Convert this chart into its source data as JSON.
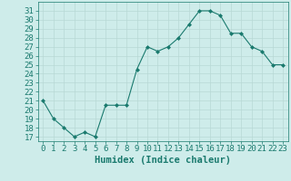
{
  "x": [
    0,
    1,
    2,
    3,
    4,
    5,
    6,
    7,
    8,
    9,
    10,
    11,
    12,
    13,
    14,
    15,
    16,
    17,
    18,
    19,
    20,
    21,
    22,
    23
  ],
  "y": [
    21.0,
    19.0,
    18.0,
    17.0,
    17.5,
    17.0,
    20.5,
    20.5,
    20.5,
    24.5,
    27.0,
    26.5,
    27.0,
    28.0,
    29.5,
    31.0,
    31.0,
    30.5,
    28.5,
    28.5,
    27.0,
    26.5,
    25.0,
    25.0
  ],
  "line_color": "#1a7a6e",
  "marker": "D",
  "marker_size": 2.0,
  "bg_color": "#ceecea",
  "grid_color": "#b8d8d5",
  "xlabel": "Humidex (Indice chaleur)",
  "ylim": [
    16.5,
    32
  ],
  "yticks": [
    17,
    18,
    19,
    20,
    21,
    22,
    23,
    24,
    25,
    26,
    27,
    28,
    29,
    30,
    31
  ],
  "xticks": [
    0,
    1,
    2,
    3,
    4,
    5,
    6,
    7,
    8,
    9,
    10,
    11,
    12,
    13,
    14,
    15,
    16,
    17,
    18,
    19,
    20,
    21,
    22,
    23
  ],
  "tick_fontsize": 6.5,
  "label_fontsize": 7.5
}
